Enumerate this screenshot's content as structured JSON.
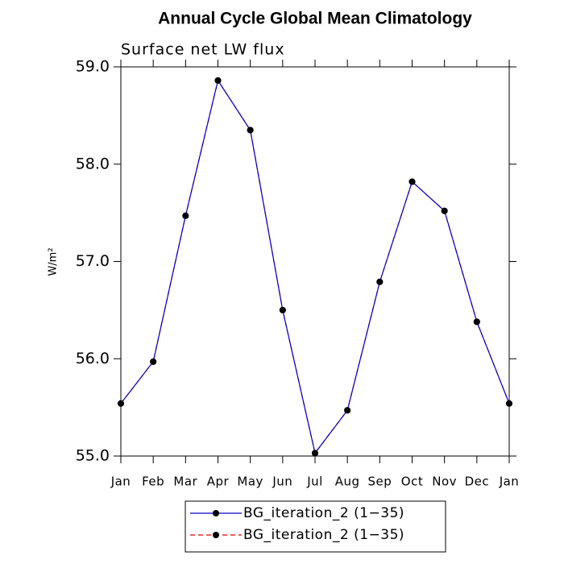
{
  "chart_data": {
    "type": "line",
    "title": "Annual Cycle Global Mean Climatology",
    "subtitle": "Surface net LW flux",
    "y_label": "W/m²",
    "categories": [
      "Jan",
      "Feb",
      "Mar",
      "Apr",
      "May",
      "Jun",
      "Jul",
      "Aug",
      "Sep",
      "Oct",
      "Nov",
      "Dec",
      "Jan"
    ],
    "series": [
      {
        "name": "BG_iteration_2 (1−35)",
        "color": "#0000c8",
        "dash": "solid",
        "marker_color": "#000000",
        "values": [
          55.54,
          55.97,
          57.47,
          58.86,
          58.35,
          56.5,
          55.03,
          55.47,
          56.79,
          57.82,
          57.52,
          56.38,
          55.54
        ]
      },
      {
        "name": "BG_iteration_2 (1−35)",
        "color": "#e00000",
        "dash": "dashed",
        "marker_color": "#000000",
        "values": [
          55.54,
          55.97,
          57.47,
          58.86,
          58.35,
          56.5,
          55.03,
          55.47,
          56.79,
          57.82,
          57.52,
          56.38,
          55.54
        ]
      }
    ],
    "ylim": [
      55,
      59
    ],
    "yticks": [
      {
        "value": 55,
        "label": "55.0"
      },
      {
        "value": 56,
        "label": "56.0"
      },
      {
        "value": 57,
        "label": "57.0"
      },
      {
        "value": 58,
        "label": "58.0"
      },
      {
        "value": 59,
        "label": "59.0"
      }
    ],
    "grid": false,
    "legend": "bottom"
  }
}
